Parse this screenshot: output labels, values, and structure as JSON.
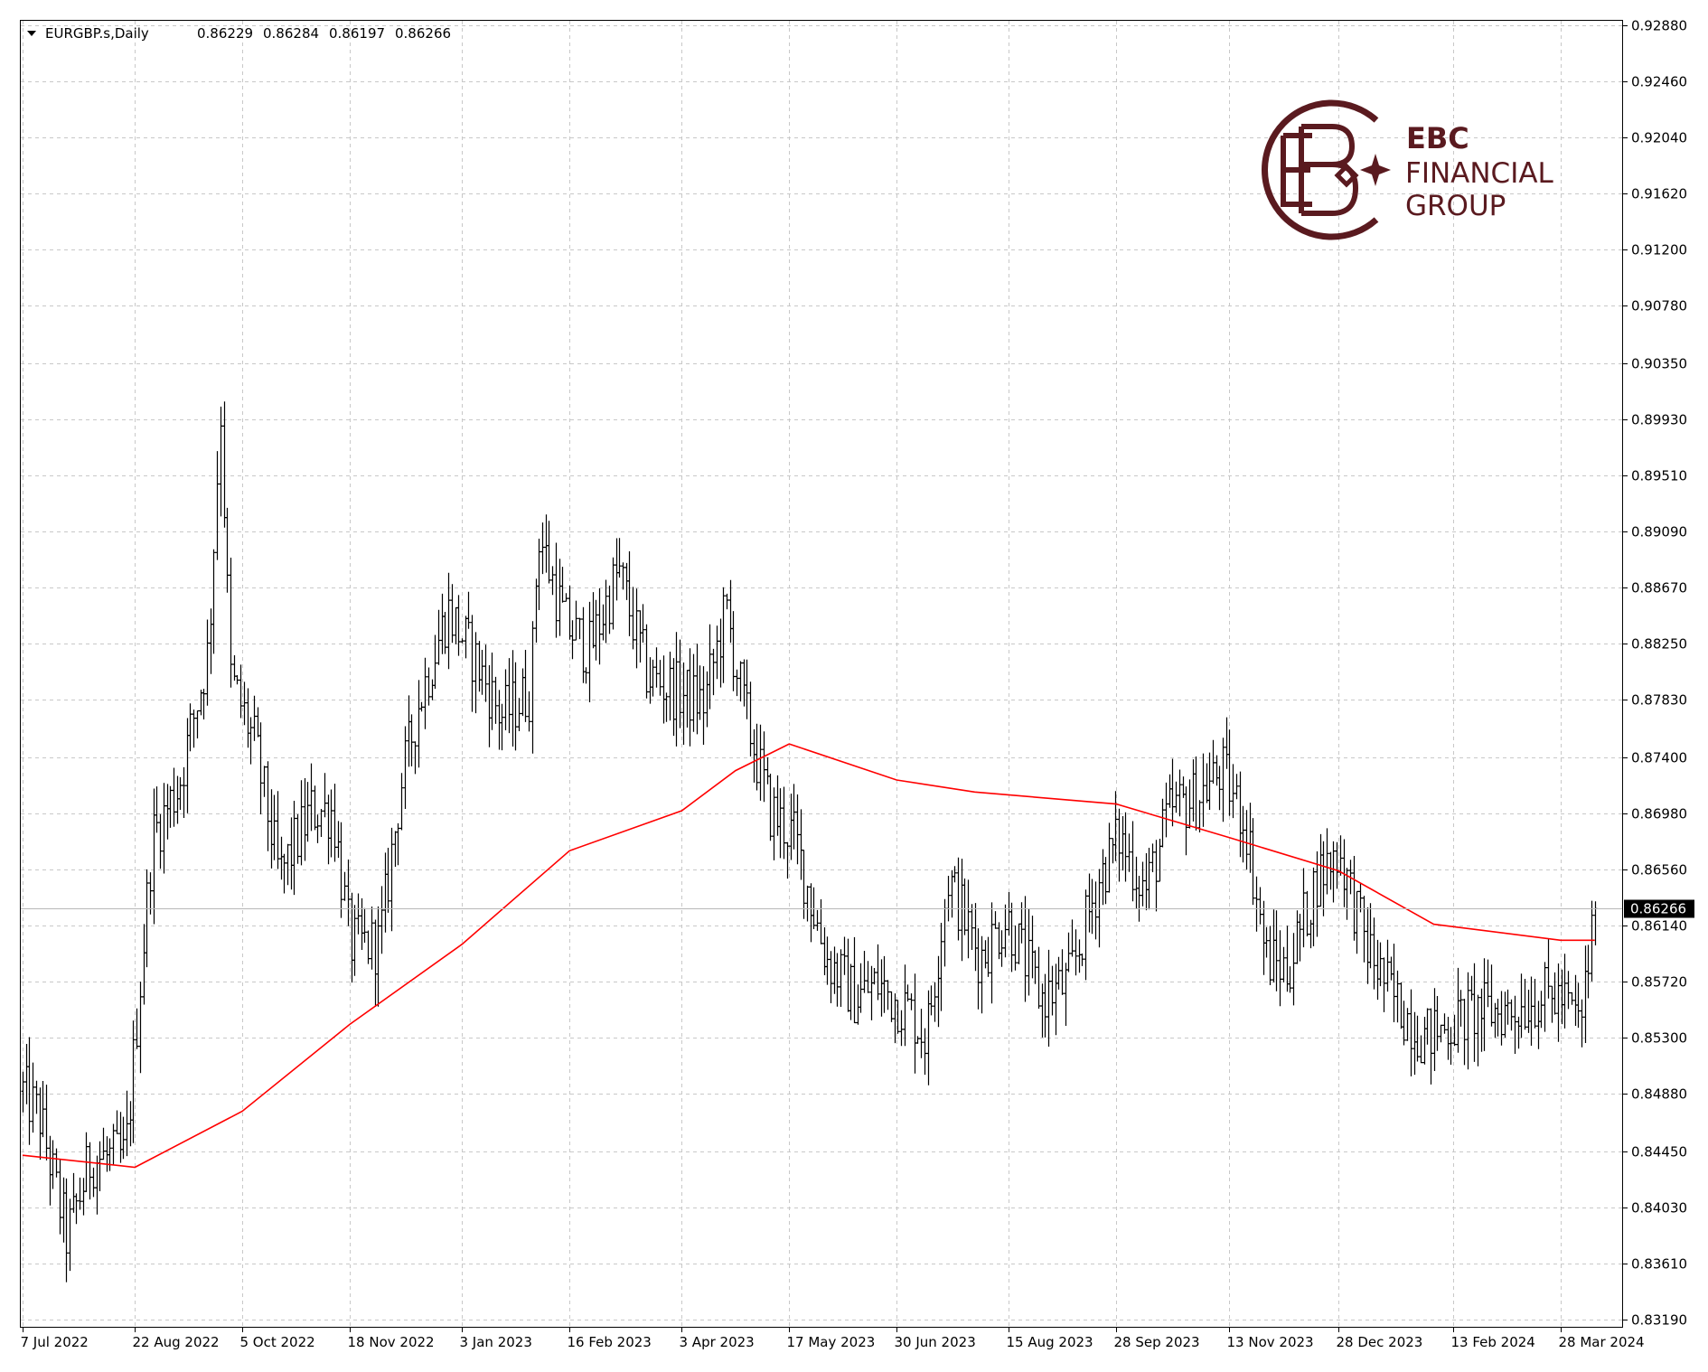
{
  "header": {
    "symbol": "EURGBP.s,Daily",
    "open": "0.86229",
    "high": "0.86284",
    "low": "0.86197",
    "close": "0.86266"
  },
  "logo": {
    "line1": "EBC",
    "line2": "FINANCIAL",
    "line3": "GROUP",
    "color": "#5a1a1f"
  },
  "current_price_label": "0.86266",
  "chart_data": {
    "type": "bar",
    "title": "",
    "xlabel": "",
    "ylabel": "",
    "ylim": [
      0.8319,
      0.9288
    ],
    "grid": true,
    "y_ticks": [
      "0.92880",
      "0.92460",
      "0.92040",
      "0.91620",
      "0.91200",
      "0.90780",
      "0.90350",
      "0.89930",
      "0.89510",
      "0.89090",
      "0.88670",
      "0.88250",
      "0.87830",
      "0.87400",
      "0.86980",
      "0.86560",
      "0.86140",
      "0.85720",
      "0.85300",
      "0.84880",
      "0.84450",
      "0.84030",
      "0.83610",
      "0.83190"
    ],
    "x_ticks": [
      "7 Jul 2022",
      "22 Aug 2022",
      "5 Oct 2022",
      "18 Nov 2022",
      "3 Jan 2023",
      "16 Feb 2023",
      "3 Apr 2023",
      "17 May 2023",
      "30 Jun 2023",
      "15 Aug 2023",
      "28 Sep 2023",
      "13 Nov 2023",
      "28 Dec 2023",
      "13 Feb 2024",
      "28 Mar 2024"
    ],
    "current_price": 0.86266,
    "series": [
      {
        "type": "ohlc",
        "bar_count": 470,
        "anchors": [
          {
            "date": "7 Jul 2022",
            "close": 0.849
          },
          {
            "date": "14 Jul 2022",
            "close": 0.847
          },
          {
            "date": "25 Jul 2022",
            "close": 0.838
          },
          {
            "date": "4 Aug 2022",
            "close": 0.844
          },
          {
            "date": "18 Aug 2022",
            "close": 0.844
          },
          {
            "date": "29 Aug 2022",
            "close": 0.868
          },
          {
            "date": "9 Sep 2022",
            "close": 0.872
          },
          {
            "date": "21 Sep 2022",
            "close": 0.882
          },
          {
            "date": "26 Sep 2022",
            "close": 0.9
          },
          {
            "date": "30 Sep 2022",
            "close": 0.88
          },
          {
            "date": "10 Oct 2022",
            "close": 0.875
          },
          {
            "date": "20 Oct 2022",
            "close": 0.865
          },
          {
            "date": "2 Nov 2022",
            "close": 0.87
          },
          {
            "date": "11 Nov 2022",
            "close": 0.87
          },
          {
            "date": "18 Nov 2022",
            "close": 0.86
          },
          {
            "date": "30 Nov 2022",
            "close": 0.86
          },
          {
            "date": "9 Dec 2022",
            "close": 0.872
          },
          {
            "date": "16 Dec 2022",
            "close": 0.878
          },
          {
            "date": "28 Dec 2022",
            "close": 0.885
          },
          {
            "date": "9 Jan 2023",
            "close": 0.881
          },
          {
            "date": "19 Jan 2023",
            "close": 0.877
          },
          {
            "date": "31 Jan 2023",
            "close": 0.879
          },
          {
            "date": "3 Feb 2023",
            "close": 0.891
          },
          {
            "date": "14 Feb 2023",
            "close": 0.884
          },
          {
            "date": "24 Feb 2023",
            "close": 0.882
          },
          {
            "date": "8 Mar 2023",
            "close": 0.888
          },
          {
            "date": "20 Mar 2023",
            "close": 0.88
          },
          {
            "date": "31 Mar 2023",
            "close": 0.879
          },
          {
            "date": "12 Apr 2023",
            "close": 0.878
          },
          {
            "date": "21 Apr 2023",
            "close": 0.885
          },
          {
            "date": "28 Apr 2023",
            "close": 0.878
          },
          {
            "date": "9 May 2023",
            "close": 0.87
          },
          {
            "date": "19 May 2023",
            "close": 0.868
          },
          {
            "date": "1 Jun 2023",
            "close": 0.859
          },
          {
            "date": "13 Jun 2023",
            "close": 0.856
          },
          {
            "date": "22 Jun 2023",
            "close": 0.857
          },
          {
            "date": "5 Jul 2023",
            "close": 0.855
          },
          {
            "date": "12 Jul 2023",
            "close": 0.853
          },
          {
            "date": "21 Jul 2023",
            "close": 0.865
          },
          {
            "date": "3 Aug 2023",
            "close": 0.859
          },
          {
            "date": "14 Aug 2023",
            "close": 0.862
          },
          {
            "date": "28 Aug 2023",
            "close": 0.856
          },
          {
            "date": "8 Sep 2023",
            "close": 0.857
          },
          {
            "date": "21 Sep 2023",
            "close": 0.865
          },
          {
            "date": "29 Sep 2023",
            "close": 0.868
          },
          {
            "date": "10 Oct 2023",
            "close": 0.864
          },
          {
            "date": "20 Oct 2023",
            "close": 0.87
          },
          {
            "date": "31 Oct 2023",
            "close": 0.871
          },
          {
            "date": "10 Nov 2023",
            "close": 0.873
          },
          {
            "date": "20 Nov 2023",
            "close": 0.869
          },
          {
            "date": "28 Nov 2023",
            "close": 0.859
          },
          {
            "date": "7 Dec 2023",
            "close": 0.858
          },
          {
            "date": "19 Dec 2023",
            "close": 0.865
          },
          {
            "date": "28 Dec 2023",
            "close": 0.867
          },
          {
            "date": "8 Jan 2024",
            "close": 0.86
          },
          {
            "date": "19 Jan 2024",
            "close": 0.856
          },
          {
            "date": "1 Feb 2024",
            "close": 0.853
          },
          {
            "date": "12 Feb 2024",
            "close": 0.854
          },
          {
            "date": "23 Feb 2024",
            "close": 0.855
          },
          {
            "date": "7 Mar 2024",
            "close": 0.855
          },
          {
            "date": "19 Mar 2024",
            "close": 0.856
          },
          {
            "date": "28 Mar 2024",
            "close": 0.856
          },
          {
            "date": "5 Apr 2024",
            "close": 0.854
          },
          {
            "date": "11 Apr 2024",
            "close": 0.8627
          }
        ]
      },
      {
        "type": "line",
        "color": "#ff0000",
        "points": [
          {
            "date": "7 Jul 2022",
            "value": 0.8442
          },
          {
            "date": "22 Aug 2022",
            "value": 0.8433
          },
          {
            "date": "5 Oct 2022",
            "value": 0.8475
          },
          {
            "date": "18 Nov 2022",
            "value": 0.854
          },
          {
            "date": "3 Jan 2023",
            "value": 0.86
          },
          {
            "date": "16 Feb 2023",
            "value": 0.867
          },
          {
            "date": "3 Apr 2023",
            "value": 0.87
          },
          {
            "date": "25 Apr 2023",
            "value": 0.873
          },
          {
            "date": "17 May 2023",
            "value": 0.875
          },
          {
            "date": "30 Jun 2023",
            "value": 0.8723
          },
          {
            "date": "1 Aug 2023",
            "value": 0.8714
          },
          {
            "date": "28 Sep 2023",
            "value": 0.8705
          },
          {
            "date": "13 Nov 2023",
            "value": 0.868
          },
          {
            "date": "28 Dec 2023",
            "value": 0.8655
          },
          {
            "date": "5 Feb 2024",
            "value": 0.8615
          },
          {
            "date": "28 Mar 2024",
            "value": 0.8603
          },
          {
            "date": "11 Apr 2024",
            "value": 0.8603
          }
        ]
      }
    ]
  }
}
